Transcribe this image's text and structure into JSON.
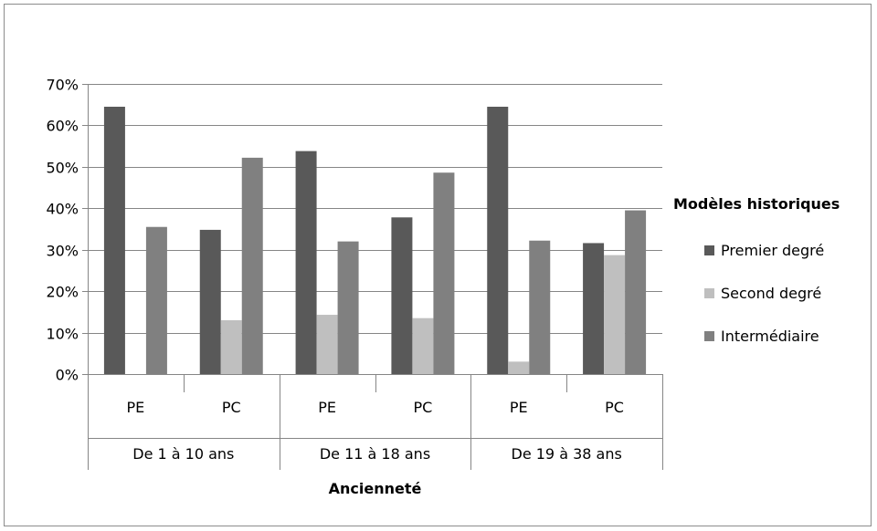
{
  "chart_data": {
    "type": "bar",
    "xlabel": "Ancienneté",
    "ylabel": "",
    "ylim": [
      0,
      0.7
    ],
    "yticks": [
      0,
      0.1,
      0.2,
      0.3,
      0.4,
      0.5,
      0.6,
      0.7
    ],
    "ytick_labels": [
      "0%",
      "10%",
      "20%",
      "30%",
      "40%",
      "50%",
      "60%",
      "70%"
    ],
    "groups": [
      "De 1 à 10 ans",
      "De 11 à 18 ans",
      "De 19 à 38 ans"
    ],
    "categories": [
      "PE",
      "PC",
      "PE",
      "PC",
      "PE",
      "PC"
    ],
    "legend": {
      "title": "Modèles historiques",
      "position": "right"
    },
    "series": [
      {
        "name": "Premier degré",
        "color": "#595959",
        "values": [
          0.645,
          0.348,
          0.538,
          0.378,
          0.645,
          0.316
        ]
      },
      {
        "name": "Second degré",
        "color": "#bfbfbf",
        "values": [
          0.0,
          0.13,
          0.143,
          0.135,
          0.03,
          0.287
        ]
      },
      {
        "name": "Intermédiaire",
        "color": "#808080",
        "values": [
          0.355,
          0.522,
          0.32,
          0.486,
          0.322,
          0.395
        ]
      }
    ],
    "grid": true
  }
}
